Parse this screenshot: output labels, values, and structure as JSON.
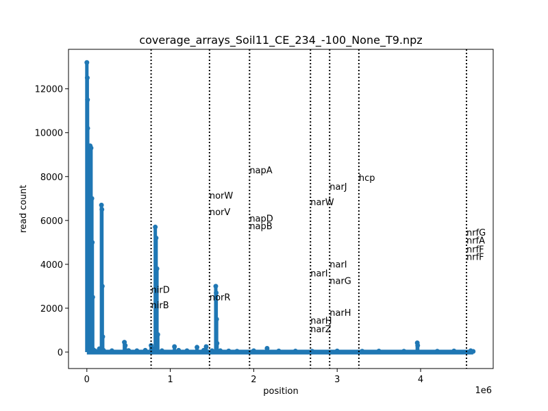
{
  "chart_data": {
    "type": "scatter",
    "title": "coverage_arrays_Soil11_CE_234_-100_None_T9.npz",
    "xlabel": "position",
    "ylabel": "read count",
    "x_offset_label": "1e6",
    "xlim": [
      -220000,
      4870000
    ],
    "ylim": [
      -750,
      13800
    ],
    "xticks": [
      0,
      1,
      2,
      3,
      4
    ],
    "xtick_scale": 1000000,
    "yticks": [
      0,
      2000,
      4000,
      6000,
      8000,
      10000,
      12000
    ],
    "grid": false,
    "color": "#1f77b4",
    "series": [
      {
        "name": "",
        "x": [
          0,
          5000,
          8000,
          10000,
          15000,
          20000,
          25000,
          30000,
          40000,
          50000,
          60000,
          65000,
          70000,
          80000,
          100000,
          150000,
          175000,
          180000,
          185000,
          190000,
          200000,
          300000,
          450000,
          460000,
          500000,
          600000,
          700000,
          770000,
          800000,
          820000,
          830000,
          840000,
          850000,
          900000,
          1050000,
          1100000,
          1200000,
          1320000,
          1400000,
          1430000,
          1500000,
          1545000,
          1550000,
          1555000,
          1560000,
          1600000,
          1700000,
          1800000,
          2000000,
          2160000,
          2300000,
          2500000,
          2700000,
          3000000,
          3300000,
          3500000,
          3800000,
          3960000,
          3965000,
          4200000,
          4400000,
          4600000,
          4630000
        ],
        "y": [
          13200,
          12500,
          11500,
          10200,
          8500,
          6000,
          4000,
          3500,
          9400,
          9300,
          7000,
          5000,
          2500,
          100,
          50,
          150,
          6700,
          6500,
          3000,
          700,
          80,
          60,
          450,
          300,
          70,
          60,
          80,
          300,
          150,
          5700,
          5200,
          3800,
          800,
          60,
          250,
          80,
          60,
          220,
          80,
          250,
          60,
          3000,
          2700,
          1500,
          400,
          60,
          50,
          40,
          60,
          170,
          50,
          45,
          40,
          50,
          40,
          45,
          40,
          420,
          300,
          40,
          50,
          60,
          30
        ]
      }
    ],
    "vlines": [
      770000,
      1470000,
      1950000,
      2680000,
      2910000,
      3260000,
      4550000
    ],
    "annotations": [
      {
        "text": "nirD",
        "x": 770000,
        "y": 2700
      },
      {
        "text": "nirB",
        "x": 770000,
        "y": 2000
      },
      {
        "text": "norW",
        "x": 1470000,
        "y": 7000
      },
      {
        "text": "norV",
        "x": 1470000,
        "y": 6250
      },
      {
        "text": "norR",
        "x": 1470000,
        "y": 2350
      },
      {
        "text": "napA",
        "x": 1950000,
        "y": 8150
      },
      {
        "text": "napD",
        "x": 1950000,
        "y": 5950
      },
      {
        "text": "napB",
        "x": 1950000,
        "y": 5600
      },
      {
        "text": "narW",
        "x": 2680000,
        "y": 6700
      },
      {
        "text": "narI",
        "x": 2680000,
        "y": 3450
      },
      {
        "text": "narH",
        "x": 2680000,
        "y": 1300
      },
      {
        "text": "narZ",
        "x": 2680000,
        "y": 900
      },
      {
        "text": "narJ",
        "x": 2910000,
        "y": 7400
      },
      {
        "text": "narI",
        "x": 2910000,
        "y": 3850
      },
      {
        "text": "narG",
        "x": 2910000,
        "y": 3100
      },
      {
        "text": "narH",
        "x": 2910000,
        "y": 1650
      },
      {
        "text": "hcp",
        "x": 3260000,
        "y": 7800
      },
      {
        "text": "nrfG",
        "x": 4550000,
        "y": 5300
      },
      {
        "text": "nrfA",
        "x": 4550000,
        "y": 4950
      },
      {
        "text": "nrfF",
        "x": 4550000,
        "y": 4550
      },
      {
        "text": "nrfF",
        "x": 4550000,
        "y": 4200
      }
    ]
  }
}
